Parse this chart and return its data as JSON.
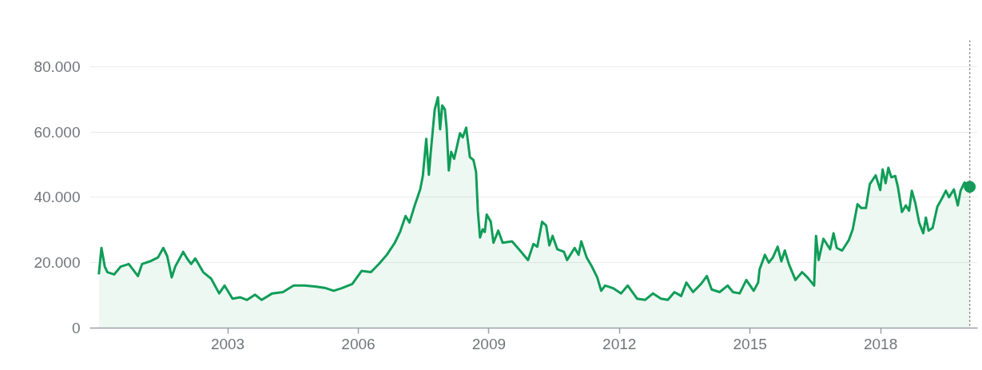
{
  "chart_data": {
    "type": "area",
    "x": [
      "2000-01-15",
      "2000-02-06",
      "2000-03-05",
      "2000-03-27",
      "2000-05-22",
      "2000-07-17",
      "2000-09-22",
      "2000-12-08",
      "2001-01-12",
      "2001-03-19",
      "2001-05-26",
      "2001-07-09",
      "2001-08-11",
      "2001-09-18",
      "2001-10-17",
      "2001-12-23",
      "2002-01-26",
      "2002-02-28",
      "2002-04-03",
      "2002-06-09",
      "2002-08-15",
      "2002-10-21",
      "2002-12-05",
      "2003-02-10",
      "2003-04-17",
      "2003-06-12",
      "2003-08-18",
      "2003-10-13",
      "2004-01-10",
      "2004-04-08",
      "2004-07-07",
      "2004-10-05",
      "2005-01-03",
      "2005-04-03",
      "2005-06-08",
      "2005-08-14",
      "2005-11-11",
      "2006-01-29",
      "2006-04-17",
      "2006-06-23",
      "2006-08-28",
      "2006-11-03",
      "2006-12-18",
      "2007-02-01",
      "2007-03-06",
      "2007-04-19",
      "2007-06-04",
      "2007-06-26",
      "2007-07-25",
      "2007-08-16",
      "2007-09-01",
      "2007-10-04",
      "2007-10-31",
      "2007-11-18",
      "2007-12-06",
      "2007-12-28",
      "2008-01-12",
      "2008-01-30",
      "2008-02-19",
      "2008-03-15",
      "2008-05-03",
      "2008-05-26",
      "2008-06-24",
      "2008-07-25",
      "2008-08-24",
      "2008-09-15",
      "2008-09-30",
      "2008-10-18",
      "2008-11-09",
      "2008-11-27",
      "2008-12-13",
      "2009-01-16",
      "2009-02-08",
      "2009-03-20",
      "2009-04-26",
      "2009-07-14",
      "2009-09-19",
      "2009-11-25",
      "2010-01-09",
      "2010-02-11",
      "2010-03-23",
      "2010-04-26",
      "2010-05-23",
      "2010-06-19",
      "2010-07-29",
      "2010-09-23",
      "2010-10-19",
      "2010-12-21",
      "2011-01-23",
      "2011-02-15",
      "2011-04-01",
      "2011-05-15",
      "2011-06-29",
      "2011-08-01",
      "2011-09-03",
      "2011-11-08",
      "2012-01-15",
      "2012-03-11",
      "2012-05-28",
      "2012-08-03",
      "2012-10-09",
      "2012-12-15",
      "2013-02-10",
      "2013-04-07",
      "2013-06-02",
      "2013-07-16",
      "2013-09-10",
      "2013-11-16",
      "2014-01-04",
      "2014-02-13",
      "2014-04-21",
      "2014-06-27",
      "2014-08-11",
      "2014-10-06",
      "2014-12-01",
      "2015-02-01",
      "2015-03-10",
      "2015-03-22",
      "2015-05-06",
      "2015-06-08",
      "2015-07-12",
      "2015-08-21",
      "2015-09-21",
      "2015-10-20",
      "2015-11-23",
      "2016-01-17",
      "2016-03-13",
      "2016-04-27",
      "2016-06-22",
      "2016-07-08",
      "2016-07-30",
      "2016-09-08",
      "2016-11-03",
      "2016-12-02",
      "2016-12-29",
      "2017-02-12",
      "2017-04-09",
      "2017-05-12",
      "2017-06-21",
      "2017-07-23",
      "2017-08-31",
      "2017-10-02",
      "2017-11-21",
      "2017-12-29",
      "2018-01-18",
      "2018-02-12",
      "2018-03-07",
      "2018-04-01",
      "2018-05-04",
      "2018-05-26",
      "2018-06-29",
      "2018-08-01",
      "2018-08-28",
      "2018-09-20",
      "2018-10-19",
      "2018-11-21",
      "2018-12-25",
      "2019-01-16",
      "2019-02-08",
      "2019-03-13",
      "2019-04-22",
      "2019-05-30",
      "2019-07-03",
      "2019-07-29",
      "2019-09-08",
      "2019-10-11",
      "2019-11-03",
      "2019-12-06",
      "2020-01-19"
    ],
    "series": [
      {
        "color": "#0f9d58",
        "values": [
          16400,
          24500,
          18800,
          17100,
          16400,
          18800,
          19600,
          15900,
          19600,
          20400,
          21600,
          24500,
          22000,
          15500,
          18800,
          23300,
          21200,
          19600,
          21300,
          17100,
          15100,
          10600,
          13000,
          9000,
          9400,
          8600,
          10200,
          8600,
          10600,
          11000,
          13000,
          13000,
          12700,
          12200,
          11400,
          12200,
          13500,
          17500,
          17100,
          19600,
          22400,
          26100,
          29500,
          34300,
          32300,
          37500,
          42400,
          46500,
          57900,
          46900,
          53900,
          66900,
          70600,
          60800,
          68100,
          66900,
          61200,
          48200,
          53900,
          51800,
          59600,
          58300,
          61300,
          52300,
          51400,
          47700,
          35900,
          27700,
          30200,
          29400,
          34700,
          32600,
          26100,
          29800,
          26100,
          26500,
          23700,
          20800,
          25700,
          24900,
          32500,
          31400,
          25300,
          28200,
          24100,
          23300,
          20800,
          24500,
          22400,
          26500,
          21600,
          18800,
          15500,
          11400,
          13000,
          12200,
          10600,
          13000,
          9000,
          8600,
          10600,
          9000,
          8600,
          11000,
          9800,
          13900,
          11000,
          13500,
          15900,
          11800,
          11000,
          13000,
          11000,
          10600,
          14700,
          11400,
          13900,
          17900,
          22400,
          20000,
          21600,
          24900,
          20400,
          23700,
          19600,
          14700,
          17100,
          15500,
          13000,
          28200,
          20800,
          27300,
          24100,
          29000,
          24500,
          23700,
          26900,
          30200,
          37900,
          36700,
          36700,
          44000,
          46700,
          42200,
          48500,
          44300,
          49000,
          46100,
          46500,
          43200,
          35500,
          37500,
          35900,
          42000,
          38300,
          32200,
          29000,
          33800,
          29800,
          30600,
          37100,
          39600,
          42000,
          40000,
          42400,
          37500,
          42000,
          44500,
          43200
        ]
      },
      {
        "type": "scatter",
        "x": [
          "2020-01-19"
        ],
        "values": [
          43200
        ],
        "color": "#0f9d58",
        "marker": "circle"
      }
    ],
    "xlim": [
      "1999-11-01",
      "2020-03-25"
    ],
    "xticks": [
      "2003",
      "2006",
      "2009",
      "2012",
      "2015",
      "2018"
    ],
    "ylim": [
      0,
      88000
    ],
    "yticks": [
      0,
      {
        "value": 20000,
        "label": "20.000"
      },
      {
        "value": 40000,
        "label": "40.000"
      },
      {
        "value": 60000,
        "label": "60.000"
      },
      {
        "value": 80000,
        "label": "80.000"
      }
    ],
    "grid": "y",
    "ref_lines": [
      {
        "axis": "x",
        "value": "2020-01-19",
        "line_style": "dotted",
        "color": "#757575"
      }
    ]
  }
}
